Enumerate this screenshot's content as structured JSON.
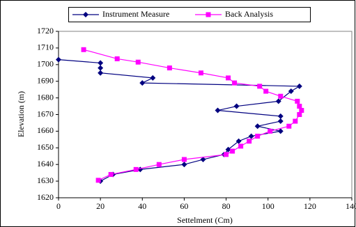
{
  "chart_data": {
    "type": "line",
    "x_label": "Settelment (Cm)",
    "y_label": "Elevation (m)",
    "xlim": [
      0,
      140
    ],
    "xticks": [
      0,
      20,
      40,
      60,
      80,
      100,
      120,
      140
    ],
    "ylim": [
      1620,
      1720
    ],
    "yticks": [
      1620,
      1630,
      1640,
      1650,
      1660,
      1670,
      1680,
      1690,
      1700,
      1710,
      1720
    ],
    "series": [
      {
        "name": "Instrument Measure",
        "color": "#000080",
        "marker": "diamond",
        "x": [
          0,
          20,
          20,
          20,
          45,
          40,
          115,
          111,
          105,
          85,
          76,
          106,
          106,
          95,
          106,
          92,
          86,
          81,
          79,
          69,
          60,
          39,
          26,
          20
        ],
        "y": [
          1703,
          1701,
          1698,
          1695,
          1692,
          1689,
          1687,
          1684,
          1678,
          1675,
          1672.5,
          1669,
          1666,
          1663,
          1660,
          1657,
          1654,
          1649,
          1646,
          1643,
          1640,
          1637,
          1634,
          1630
        ]
      },
      {
        "name": "Back Analysis",
        "color": "#ff00ff",
        "marker": "square",
        "x": [
          12,
          28,
          38,
          53,
          68,
          81,
          84,
          96,
          99,
          106,
          114,
          115,
          116,
          115,
          113,
          110,
          101,
          95,
          91,
          87,
          83,
          80,
          60,
          48,
          37,
          25,
          19
        ],
        "y": [
          1709,
          1703.5,
          1701.5,
          1698,
          1695,
          1692,
          1689,
          1687,
          1684,
          1681,
          1678,
          1675,
          1672.5,
          1670,
          1666,
          1663,
          1660,
          1657,
          1654,
          1651,
          1648,
          1646,
          1643,
          1640,
          1637,
          1634,
          1630.5
        ]
      }
    ]
  }
}
